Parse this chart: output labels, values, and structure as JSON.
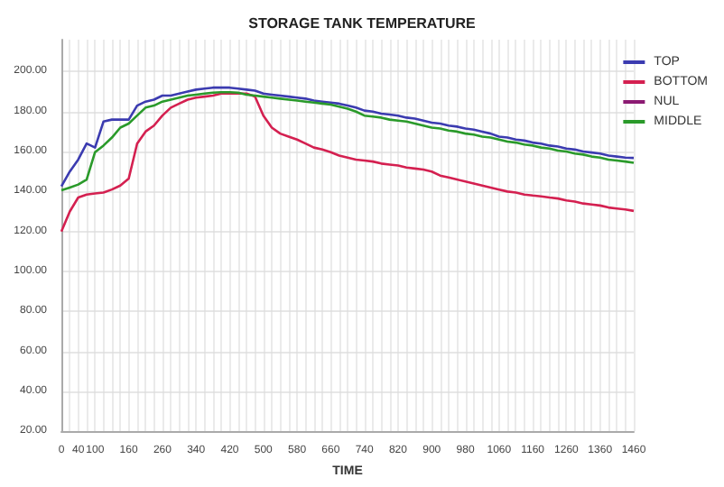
{
  "chart_data": {
    "type": "line",
    "title": "STORAGE TANK TEMPERATURE",
    "xlabel": "TIME",
    "categories": [
      "0",
      null,
      "40",
      null,
      "100",
      null,
      null,
      null,
      "160",
      null,
      null,
      null,
      "260",
      null,
      null,
      null,
      "340",
      null,
      null,
      null,
      "420",
      null,
      null,
      null,
      "500",
      null,
      null,
      null,
      "580",
      null,
      null,
      null,
      "660",
      null,
      null,
      null,
      "740",
      null,
      null,
      null,
      "820",
      null,
      null,
      null,
      "900",
      null,
      null,
      null,
      "980",
      null,
      null,
      null,
      "1060",
      null,
      null,
      null,
      "1160",
      null,
      null,
      null,
      "1260",
      null,
      null,
      null,
      "1360",
      null,
      null,
      null,
      "1460"
    ],
    "series": [
      {
        "name": "TOP",
        "color": "#3b3bb0",
        "values": [
          142.6,
          150,
          156,
          164,
          162,
          175,
          176,
          176,
          176,
          183,
          185,
          186,
          188,
          188,
          189,
          190,
          191,
          191.5,
          192,
          192,
          192,
          191.5,
          191,
          190.5,
          189,
          188.5,
          188,
          187.5,
          187,
          186.5,
          185.5,
          185,
          184.5,
          184,
          183,
          182,
          180.5,
          180,
          179,
          178.5,
          178,
          177,
          176.5,
          175.5,
          174.5,
          174,
          173,
          172.5,
          171.5,
          171,
          170,
          169,
          167.5,
          167,
          166,
          165.5,
          164.5,
          164,
          163,
          162.5,
          161.5,
          161,
          160,
          159.5,
          159,
          158,
          157.5,
          157,
          156.8
        ]
      },
      {
        "name": "BOTTOM",
        "color": "#d42050",
        "values": [
          120,
          130,
          137,
          138.5,
          139,
          139.5,
          141,
          143,
          146.5,
          164,
          170,
          173,
          178,
          182,
          184,
          186,
          187,
          187.5,
          188,
          189,
          189,
          189,
          189,
          187.6,
          178,
          172,
          169,
          167.5,
          166,
          164,
          162,
          161,
          159.7,
          158,
          157,
          156,
          155.5,
          155,
          154,
          153.5,
          153,
          152,
          151.5,
          151,
          150,
          148,
          147,
          146,
          145,
          144,
          143,
          142,
          141,
          140,
          139.5,
          138.5,
          138,
          137.6,
          137,
          136.5,
          135.5,
          135,
          134,
          133.5,
          133,
          132,
          131.5,
          131,
          130.3
        ]
      },
      {
        "name": "NUL",
        "color": "#8b1a72",
        "values": [
          null,
          null,
          null,
          null,
          null,
          null,
          null,
          null,
          null,
          null,
          null,
          null,
          null,
          null,
          null,
          null,
          null,
          null,
          null,
          null,
          null,
          null,
          null,
          null,
          null,
          null,
          null,
          null,
          null,
          null,
          null,
          null,
          null,
          null,
          null,
          null,
          null,
          null,
          null,
          null,
          null,
          null,
          null,
          null,
          null,
          null,
          null,
          null,
          null,
          null,
          null,
          null,
          null,
          null,
          null,
          null,
          null,
          null,
          null,
          null,
          null,
          null,
          null,
          null,
          null,
          null,
          null,
          null,
          null
        ]
      },
      {
        "name": "MIDDLE",
        "color": "#2a9a2a",
        "values": [
          140.6,
          142,
          143.5,
          146,
          159.7,
          163,
          167,
          172,
          174,
          178,
          182,
          183,
          185,
          186,
          187,
          188,
          188.5,
          189,
          189.5,
          189.7,
          189.7,
          189.5,
          188.5,
          188,
          187.5,
          187,
          186.5,
          186,
          185.5,
          185,
          184.5,
          184,
          183.5,
          182.5,
          181.5,
          180,
          178,
          177.5,
          177,
          176,
          175.5,
          175,
          174,
          173,
          172,
          171.5,
          170.5,
          170,
          169,
          168.5,
          167.5,
          167,
          166,
          165,
          164.5,
          163.5,
          163,
          162,
          161.5,
          160.5,
          160,
          159,
          158.5,
          157.5,
          157,
          156,
          155.5,
          155,
          154.4
        ]
      }
    ],
    "ylim": [
      20,
      216
    ],
    "yticks": [
      {
        "value": 20,
        "label": "20.00"
      },
      {
        "value": 40,
        "label": "40.00"
      },
      {
        "value": 60,
        "label": "60.00"
      },
      {
        "value": 80,
        "label": "80.00"
      },
      {
        "value": 100,
        "label": "100.00"
      },
      {
        "value": 120,
        "label": "120.00"
      },
      {
        "value": 140,
        "label": "140.00"
      },
      {
        "value": 160,
        "label": "160.00"
      },
      {
        "value": 180,
        "label": "180.00"
      },
      {
        "value": 200,
        "label": "200.00"
      }
    ],
    "grid": true,
    "legend": "top right",
    "marker": "none",
    "line_style": "solid"
  }
}
